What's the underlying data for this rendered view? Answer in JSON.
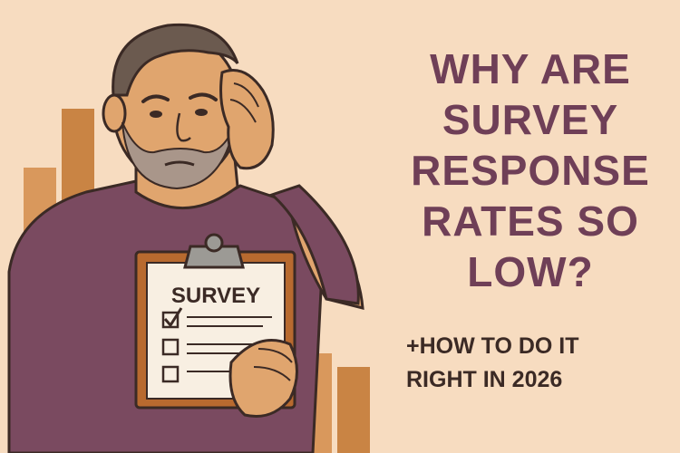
{
  "headline": {
    "lines": [
      "Why are",
      "survey",
      "response",
      "rates so",
      "low?"
    ]
  },
  "subheadline": {
    "lines": [
      "+How to do it",
      "right in 2026"
    ]
  },
  "clipboard": {
    "title": "SURVEY",
    "checked_items": 1,
    "total_items": 3
  },
  "colors": {
    "background": "#f7dcc0",
    "headline": "#6f3f57",
    "subheadline": "#3b2a25",
    "bars": "#d9985c",
    "shirt": "#7a4a60",
    "skin": "#e0a56e"
  }
}
